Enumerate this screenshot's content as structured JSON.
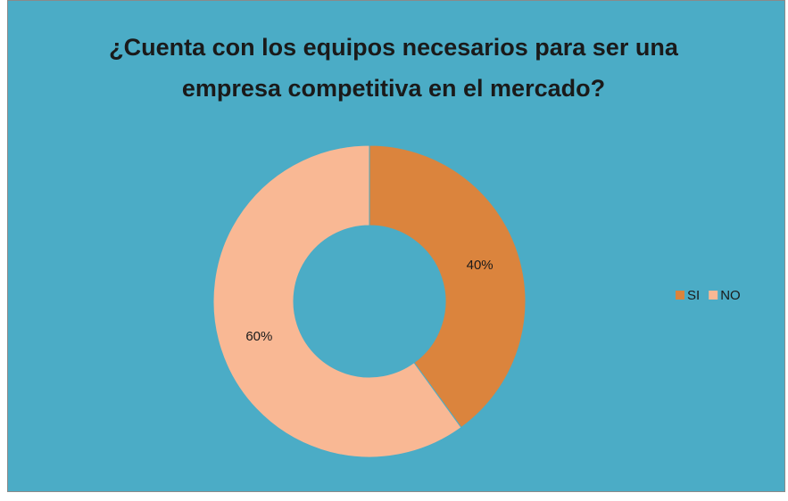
{
  "chart_data": {
    "type": "donut",
    "title": "¿Cuenta con los equipos necesarios para ser una empresa competitiva en el mercado?",
    "categories": [
      "SI",
      "NO"
    ],
    "values": [
      40,
      60
    ],
    "value_labels": [
      "40%",
      "60%"
    ],
    "colors": [
      "#db843d",
      "#f9b894"
    ],
    "legend": "right"
  }
}
